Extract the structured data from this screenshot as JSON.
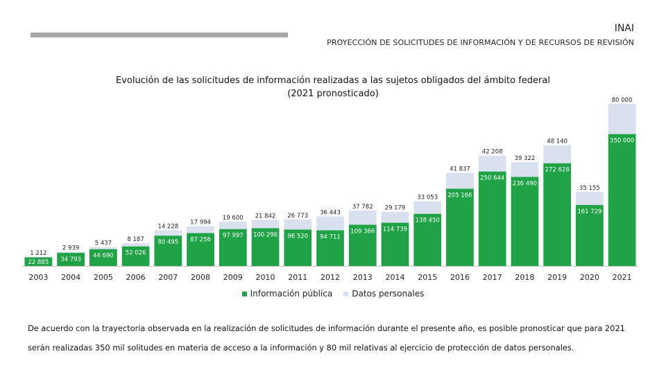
{
  "header": {
    "org": "INAI",
    "subtitle": "PROYECCIÓN DE SOLICITUDES DE INFORMACIÓN Y DE RECURSOS DE REVISIÓN"
  },
  "chart_data": {
    "type": "bar",
    "stacked": true,
    "title": "Evolución de las solicitudes de información realizadas a las sujetos obligados del ámbito federal",
    "title2": "(2021 pronosticado)",
    "categories": [
      "2003",
      "2004",
      "2005",
      "2006",
      "2007",
      "2008",
      "2009",
      "2010",
      "2011",
      "2012",
      "2013",
      "2014",
      "2015",
      "2016",
      "2017",
      "2018",
      "2019",
      "2020",
      "2021"
    ],
    "series": [
      {
        "name": "Información pública",
        "color": "#1fa346",
        "values": [
          22885,
          34793,
          44690,
          52026,
          80495,
          87256,
          97997,
          100296,
          96520,
          94711,
          109366,
          114739,
          138450,
          205166,
          250644,
          236490,
          272628,
          161729,
          350000
        ],
        "labels": [
          "22 885",
          "34 793",
          "44 690",
          "52 026",
          "80 495",
          "87 256",
          "97 997",
          "100 296",
          "96 520",
          "94 711",
          "109 366",
          "114 739",
          "138 450",
          "205 166",
          "250 644",
          "236 490",
          "272 628",
          "161 729",
          "350 000"
        ]
      },
      {
        "name": "Datos personales",
        "color": "#d9e1ee",
        "values": [
          1212,
          2939,
          5437,
          8187,
          14228,
          17994,
          19600,
          21842,
          26773,
          36443,
          37782,
          29179,
          33053,
          41837,
          42208,
          39322,
          48140,
          35155,
          80000
        ],
        "labels": [
          "1 212",
          "2 939",
          "5 437",
          "8 187",
          "14 228",
          "17 994",
          "19 600",
          "21 842",
          "26 773",
          "36 443",
          "37 782",
          "29 179",
          "33 053",
          "41 837",
          "42 208",
          "39 322",
          "48 140",
          "35 155",
          "80 000"
        ]
      }
    ],
    "legend": [
      "Información pública",
      "Datos personales"
    ],
    "legend_position": "bottom",
    "ylim": [
      0,
      430000
    ],
    "grid": false
  },
  "footnote": "De acuerdo con la trayectoria observada en la realización de solicitudes de información durante el presente año, es posible pronosticar que para 2021 serán realizadas 350 mil solitudes en materia de acceso a la información y 80 mil relativas al ejercicio de protección de datos personales."
}
